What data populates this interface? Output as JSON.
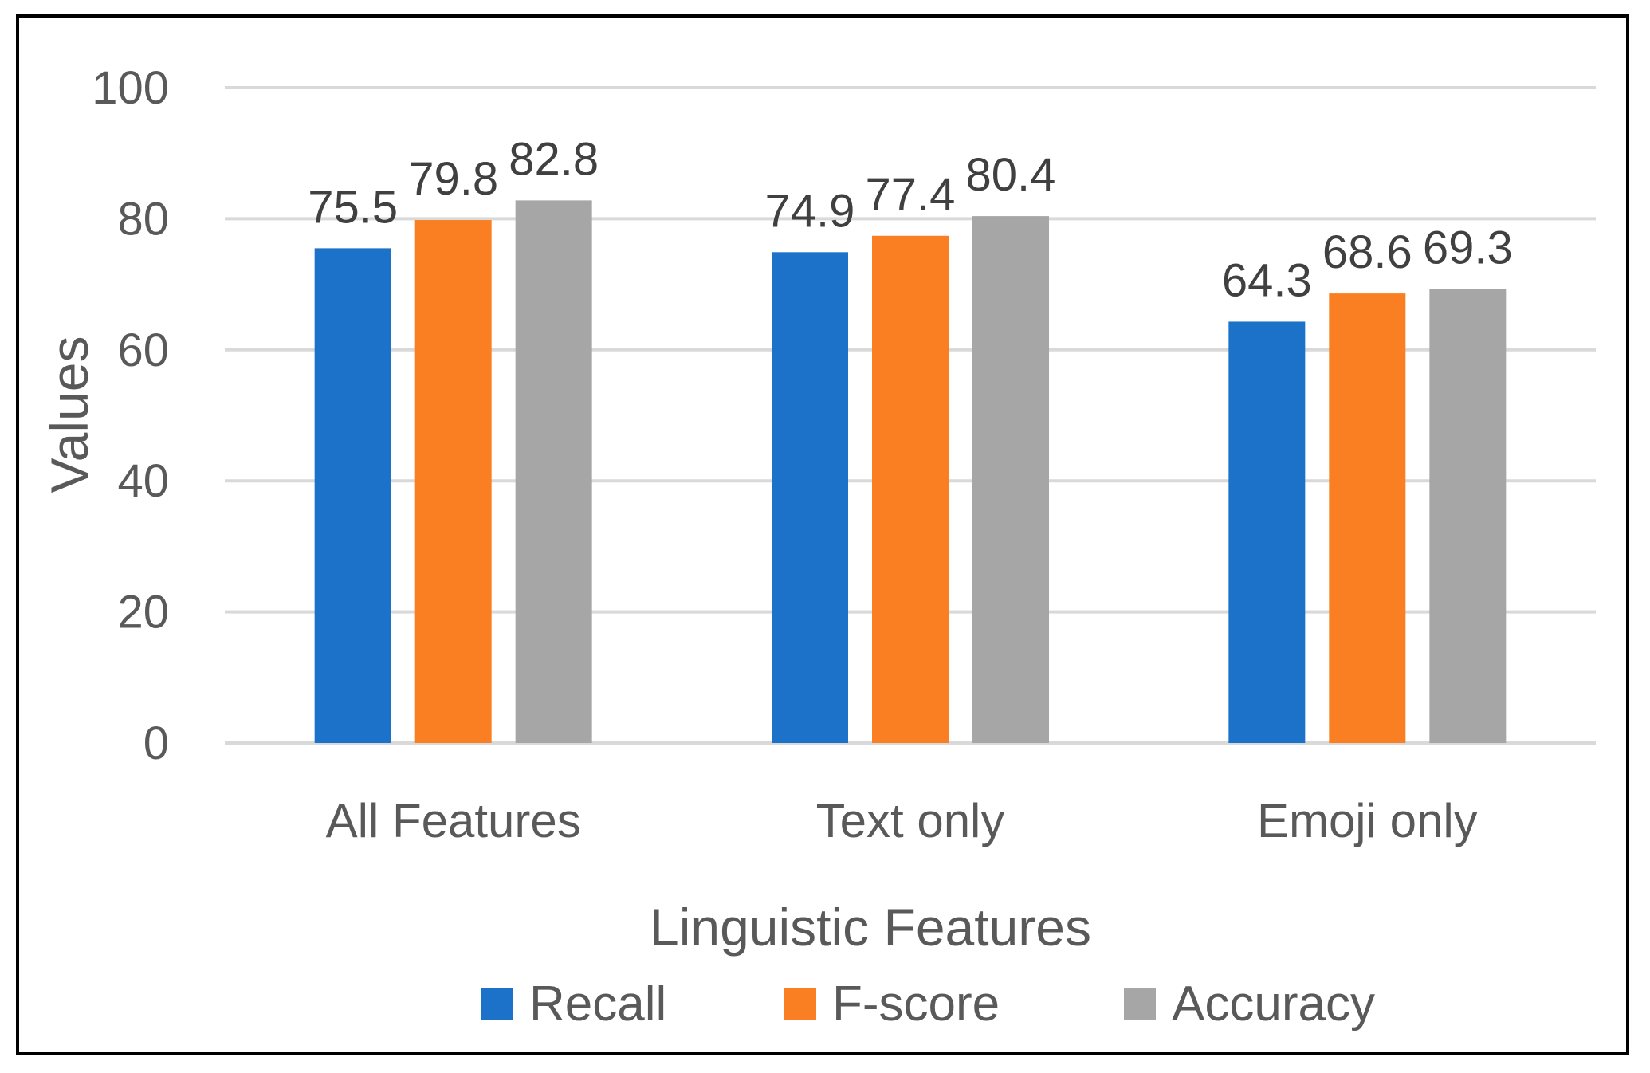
{
  "chart_data": {
    "type": "bar",
    "title": "",
    "xlabel": "Linguistic Features",
    "ylabel": "Values",
    "ylim": [
      0,
      100
    ],
    "yticks": [
      0,
      20,
      40,
      60,
      80,
      100
    ],
    "ytick_labels": [
      "0",
      "20",
      "40",
      "60",
      "80",
      "100"
    ],
    "grid": true,
    "legend_position": "bottom",
    "categories": [
      "All Features",
      "Text only",
      "Emoji only"
    ],
    "series": [
      {
        "name": "Recall",
        "color": "#1C72C9",
        "values": [
          75.5,
          74.9,
          64.3
        ],
        "labels": [
          "75.5",
          "74.9",
          "64.3"
        ]
      },
      {
        "name": "F-score",
        "color": "#FA7E22",
        "values": [
          79.8,
          77.4,
          68.6
        ],
        "labels": [
          "79.8",
          "77.4",
          "68.6"
        ]
      },
      {
        "name": "Accuracy",
        "color": "#A6A6A6",
        "values": [
          82.8,
          80.4,
          69.3
        ],
        "labels": [
          "82.8",
          "80.4",
          "69.3"
        ]
      }
    ]
  }
}
